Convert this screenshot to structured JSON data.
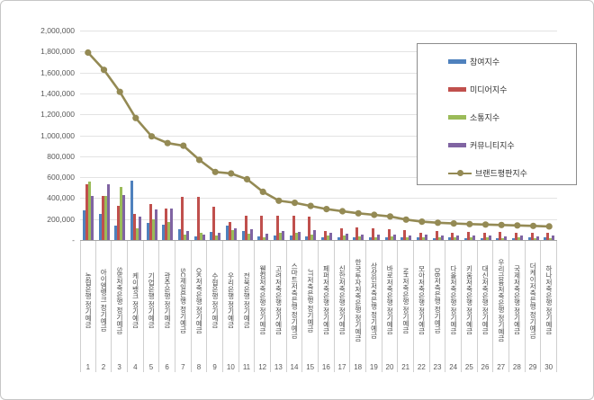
{
  "chart_data": {
    "type": "bar",
    "subtype": "grouped-bars-with-line-overlay",
    "title": "",
    "grid": true,
    "legend_position": "top-right",
    "y_axis": {
      "min": 0,
      "max": 2000000,
      "step": 200000,
      "tick_labels": [
        "2,000,000",
        "1,800,000",
        "1,600,000",
        "1,400,000",
        "1,200,000",
        "1,000,000",
        "800,000",
        "600,000",
        "400,000",
        "200,000",
        "-"
      ]
    },
    "category_numbers": [
      "1",
      "2",
      "3",
      "4",
      "5",
      "6",
      "7",
      "8",
      "9",
      "10",
      "11",
      "12",
      "13",
      "14",
      "15",
      "16",
      "17",
      "18",
      "19",
      "20",
      "21",
      "22",
      "23",
      "24",
      "25",
      "26",
      "27",
      "28",
      "29",
      "30"
    ],
    "categories": [
      "농협은행 정기예금",
      "아이엠뱅크 정기예금",
      "SBI저축은행 정기예금",
      "케이뱅크 정기예금",
      "기업은행 정기예금",
      "광주은행 정기예금",
      "SC제일은행 정기예금",
      "OK저축은행 정기예금",
      "수협은행 정기예금",
      "우리은행 정기예금",
      "전북은행 정기예금",
      "웰컴저축은행 정기예금",
      "고려저축은행 정기예금",
      "스마트저축은행 정기예금",
      "JT저축은행 정기예금",
      "페퍼저축은행 정기예금",
      "신한저축은행 정기예금",
      "한국투자저축은행 정기예금",
      "상상인저축은행 정기예금",
      "바로저축은행 정기예금",
      "NH저축은행 정기예금",
      "모아저축은행 정기예금",
      "DB저축은행 정기예금",
      "다올저축은행 정기예금",
      "키움저축은행 정기예금",
      "대신저축은행 정기예금",
      "우리금융저축은행 정기예금",
      "국제저축은행 정기예금",
      "더케이저축은행 정기예금",
      "하나저축은행 정기예금"
    ],
    "series": [
      {
        "name": "참여지수",
        "key": "participation-index",
        "type": "bar",
        "color": "#4F81BD",
        "values": [
          280000,
          250000,
          140000,
          570000,
          160000,
          150000,
          105000,
          35000,
          80000,
          140000,
          85000,
          35000,
          45000,
          40000,
          35000,
          30000,
          30000,
          25000,
          30000,
          25000,
          30000,
          25000,
          20000,
          25000,
          20000,
          20000,
          20000,
          20000,
          25000,
          25000
        ]
      },
      {
        "name": "미디어지수",
        "key": "media-index",
        "type": "bar",
        "color": "#C0504D",
        "values": [
          530000,
          420000,
          330000,
          250000,
          340000,
          300000,
          410000,
          415000,
          315000,
          175000,
          235000,
          230000,
          230000,
          235000,
          225000,
          85000,
          115000,
          120000,
          110000,
          105000,
          95000,
          70000,
          90000,
          65000,
          75000,
          70000,
          80000,
          70000,
          65000,
          70000
        ]
      },
      {
        "name": "소통지수",
        "key": "communication-index",
        "type": "bar",
        "color": "#9BBB59",
        "values": [
          560000,
          420000,
          510000,
          115000,
          200000,
          170000,
          55000,
          70000,
          40000,
          95000,
          60000,
          30000,
          70000,
          65000,
          55000,
          45000,
          40000,
          35000,
          30000,
          35000,
          25000,
          30000,
          25000,
          30000,
          25000,
          25000,
          20000,
          25000,
          20000,
          20000
        ]
      },
      {
        "name": "커뮤니티지수",
        "key": "community-index",
        "type": "bar",
        "color": "#8064A2",
        "values": [
          420000,
          530000,
          430000,
          225000,
          290000,
          300000,
          90000,
          55000,
          70000,
          115000,
          100000,
          60000,
          85000,
          80000,
          95000,
          70000,
          60000,
          55000,
          50000,
          55000,
          45000,
          50000,
          40000,
          45000,
          40000,
          40000,
          35000,
          40000,
          35000,
          40000
        ]
      },
      {
        "name": "브랜드평판지수",
        "key": "brand-reputation-index",
        "type": "line",
        "color": "#948A54",
        "values": [
          1790000,
          1625000,
          1415000,
          1165000,
          990000,
          925000,
          900000,
          765000,
          650000,
          635000,
          580000,
          460000,
          375000,
          355000,
          325000,
          295000,
          275000,
          255000,
          240000,
          225000,
          195000,
          175000,
          165000,
          158000,
          152000,
          148000,
          143000,
          139000,
          135000,
          130000
        ]
      }
    ]
  }
}
